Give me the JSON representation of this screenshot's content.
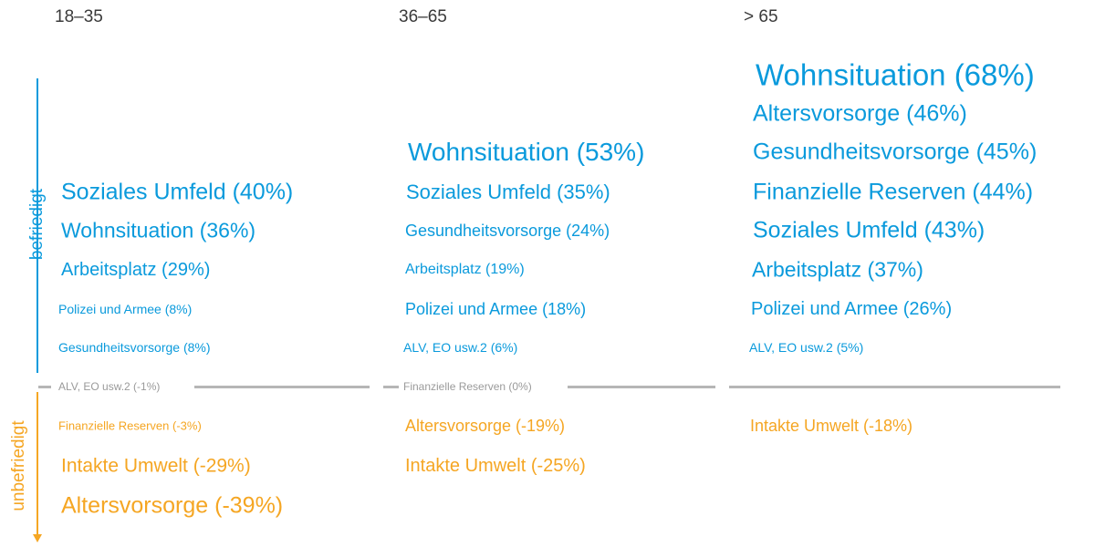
{
  "chart_data": {
    "type": "table",
    "axis": {
      "positive_label": "befriedigt",
      "negative_label": "unbefriedigt"
    },
    "columns": [
      {
        "header": "18–35",
        "items": [
          {
            "label": "Soziales Umfeld (40%)",
            "value": 40
          },
          {
            "label": "Wohnsituation (36%)",
            "value": 36
          },
          {
            "label": "Arbeitsplatz (29%)",
            "value": 29
          },
          {
            "label": "Polizei und Armee (8%)",
            "value": 8
          },
          {
            "label": "Gesundheitsvorsorge (8%)",
            "value": 8
          },
          {
            "label": "ALV, EO usw.2 (-1%)",
            "value": -1
          },
          {
            "label": "Finanzielle Reserven (-3%)",
            "value": -3
          },
          {
            "label": "Intakte Umwelt (-29%)",
            "value": -29
          },
          {
            "label": "Altersvorsorge (-39%)",
            "value": -39
          }
        ]
      },
      {
        "header": "36–65",
        "items": [
          {
            "label": "Wohnsituation (53%)",
            "value": 53
          },
          {
            "label": "Soziales Umfeld (35%)",
            "value": 35
          },
          {
            "label": "Gesundheitsvorsorge (24%)",
            "value": 24
          },
          {
            "label": "Arbeitsplatz (19%)",
            "value": 19
          },
          {
            "label": "Polizei und Armee (18%)",
            "value": 18
          },
          {
            "label": "ALV, EO usw.2 (6%)",
            "value": 6
          },
          {
            "label": "Finanzielle Reserven (0%)",
            "value": 0
          },
          {
            "label": "Altersvorsorge (-19%)",
            "value": -19
          },
          {
            "label": "Intakte Umwelt (-25%)",
            "value": -25
          }
        ]
      },
      {
        "header": "> 65",
        "items": [
          {
            "label": "Wohnsituation (68%)",
            "value": 68
          },
          {
            "label": "Altersvorsorge (46%)",
            "value": 46
          },
          {
            "label": "Gesundheitsvorsorge (45%)",
            "value": 45
          },
          {
            "label": "Finanzielle Reserven (44%)",
            "value": 44
          },
          {
            "label": "Soziales Umfeld (43%)",
            "value": 43
          },
          {
            "label": "Arbeitsplatz (37%)",
            "value": 37
          },
          {
            "label": "Polizei und Armee (26%)",
            "value": 26
          },
          {
            "label": "ALV, EO usw.2 (5%)",
            "value": 5
          },
          {
            "label": "Intakte Umwelt (-18%)",
            "value": -18
          }
        ]
      }
    ],
    "colors": {
      "positive": "#0A9ADC",
      "negative": "#F5A623",
      "neutral": "#9a9a9a",
      "zero_line": "#b6b6b6"
    }
  }
}
